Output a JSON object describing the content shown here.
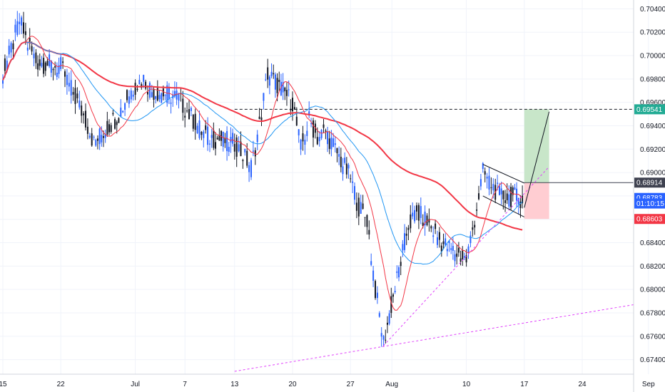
{
  "chart_data": {
    "type": "candlestick",
    "title": "",
    "xlabel": "",
    "ylabel": "",
    "ylim": [
      0.673,
      0.705
    ],
    "y_ticks": [
      "0.70400",
      "0.70200",
      "0.70000",
      "0.69800",
      "0.69600",
      "0.69400",
      "0.69200",
      "0.69000",
      "0.68800",
      "0.68600",
      "0.68400",
      "0.68200",
      "0.68000",
      "0.67800",
      "0.67600",
      "0.67400"
    ],
    "x_ticks": [
      {
        "label": "15",
        "date": "2020-06-15"
      },
      {
        "label": "22",
        "date": "2020-06-22"
      },
      {
        "label": "Jul",
        "date": "2020-07-01"
      },
      {
        "label": "7",
        "date": "2020-07-07"
      },
      {
        "label": "13",
        "date": "2020-07-13"
      },
      {
        "label": "20",
        "date": "2020-07-20"
      },
      {
        "label": "27",
        "date": "2020-07-27"
      },
      {
        "label": "Aug",
        "date": "2020-08-01"
      },
      {
        "label": "10",
        "date": "2020-08-10"
      },
      {
        "label": "17",
        "date": "2020-08-17"
      },
      {
        "label": "24",
        "date": "2020-08-24"
      },
      {
        "label": "Sep",
        "date": "2020-09-01"
      }
    ],
    "price_path": {
      "description_points": [
        [
          "2020-06-15",
          0.6985
        ],
        [
          "2020-06-16",
          0.7005
        ],
        [
          "2020-06-17",
          0.703
        ],
        [
          "2020-06-18",
          0.701
        ],
        [
          "2020-06-19",
          0.6995
        ],
        [
          "2020-06-22",
          0.699
        ],
        [
          "2020-06-23",
          0.6975
        ],
        [
          "2020-06-24",
          0.696
        ],
        [
          "2020-06-25",
          0.6945
        ],
        [
          "2020-06-26",
          0.6925
        ],
        [
          "2020-06-29",
          0.695
        ],
        [
          "2020-06-30",
          0.6965
        ],
        [
          "2020-07-01",
          0.6975
        ],
        [
          "2020-07-02",
          0.698
        ],
        [
          "2020-07-03",
          0.697
        ],
        [
          "2020-07-06",
          0.6965
        ],
        [
          "2020-07-07",
          0.6955
        ],
        [
          "2020-07-08",
          0.6945
        ],
        [
          "2020-07-09",
          0.6935
        ],
        [
          "2020-07-10",
          0.693
        ],
        [
          "2020-07-13",
          0.6925
        ],
        [
          "2020-07-14",
          0.6915
        ],
        [
          "2020-07-15",
          0.6905
        ],
        [
          "2020-07-16",
          0.694
        ],
        [
          "2020-07-17",
          0.6985
        ],
        [
          "2020-07-20",
          0.696
        ],
        [
          "2020-07-21",
          0.692
        ],
        [
          "2020-07-22",
          0.6945
        ],
        [
          "2020-07-23",
          0.693
        ],
        [
          "2020-07-24",
          0.6935
        ],
        [
          "2020-07-27",
          0.6895
        ],
        [
          "2020-07-28",
          0.687
        ],
        [
          "2020-07-29",
          0.686
        ],
        [
          "2020-07-30",
          0.68
        ],
        [
          "2020-07-31",
          0.6755
        ],
        [
          "2020-08-03",
          0.6855
        ],
        [
          "2020-08-04",
          0.6865
        ],
        [
          "2020-08-05",
          0.686
        ],
        [
          "2020-08-06",
          0.685
        ],
        [
          "2020-08-07",
          0.684
        ],
        [
          "2020-08-10",
          0.6825
        ],
        [
          "2020-08-11",
          0.686
        ],
        [
          "2020-08-12",
          0.69
        ],
        [
          "2020-08-13",
          0.689
        ],
        [
          "2020-08-14",
          0.688
        ],
        [
          "2020-08-17",
          0.6878
        ]
      ]
    },
    "series": [
      {
        "name": "",
        "color": "#f23645",
        "values_desc": "200 MA, rising from 0.6985 to peak ~0.7005 around Jul 1 then declining to ~0.6900 by Aug 17"
      },
      {
        "name": "",
        "color": "#2196f3",
        "values_desc": "blue moving average following price with lag"
      },
      {
        "name": "",
        "color": "#f23645",
        "values_desc": "thin red moving average following price closely"
      }
    ],
    "price_tags": [
      {
        "label": "0.69541",
        "value": 0.69541,
        "color": "#22ab94"
      },
      {
        "label": "0.68914",
        "value": 0.68914,
        "color": "#3f4250"
      },
      {
        "label": "0.68783",
        "value": 0.68783,
        "color": "#2962ff"
      },
      {
        "label": "01:10:15",
        "value": 0.68735,
        "color": "#2962ff"
      },
      {
        "label": "0.68603",
        "value": 0.68603,
        "color": "#f23645"
      }
    ],
    "target_level": 0.69541,
    "entry_level": 0.68914,
    "stop_level": 0.68603,
    "colors": {
      "up": "#2962ff",
      "down": "#131722",
      "grid": "#f0f3fa",
      "ma_slow": "#f23645",
      "ma_fast": "#2196f3",
      "trend": "#e040fb",
      "target_zone": "#c8e6c9",
      "stop_zone": "#ffcdd2"
    }
  }
}
